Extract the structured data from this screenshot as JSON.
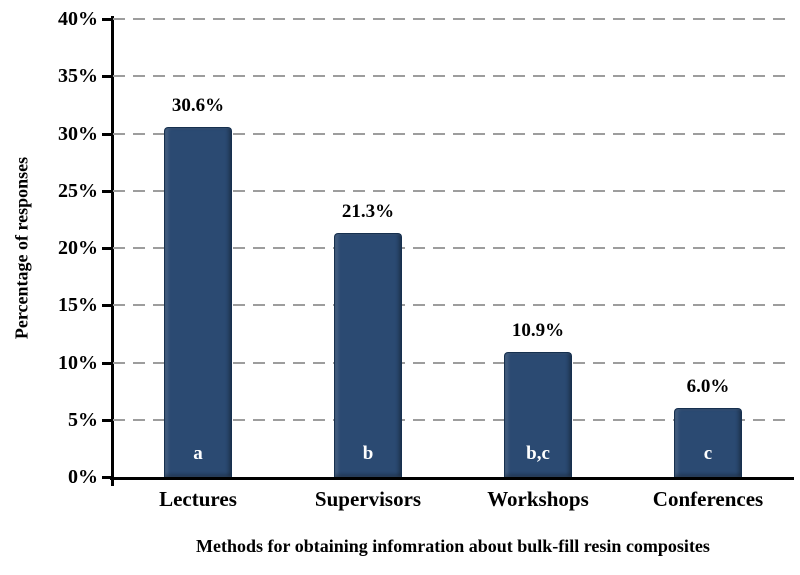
{
  "chart_data": {
    "type": "bar",
    "title": "",
    "categories": [
      "Lectures",
      "Supervisors",
      "Workshops",
      "Conferences"
    ],
    "values": [
      30.6,
      21.3,
      10.9,
      6.0
    ],
    "value_labels": [
      "30.6%",
      "21.3%",
      "10.9%",
      "6.0%"
    ],
    "bar_annotations": [
      "a",
      "b",
      "b,c",
      "c"
    ],
    "xlabel": "Methods for obtaining infomration about bulk-fill resin composites",
    "ylabel": "Percentage of responses",
    "ylim": [
      0,
      40
    ],
    "ytick_step": 5,
    "ytick_labels": [
      "0%",
      "5%",
      "10%",
      "15%",
      "20%",
      "25%",
      "30%",
      "35%",
      "40%"
    ],
    "grid": "horizontal-dashed",
    "legend_position": "none",
    "colors": {
      "bar_fill": "#2b4a72",
      "bar_edge": "#16304f",
      "bar_highlight": "#7390b4",
      "gridline": "#9d9d9d",
      "axis": "#000000",
      "text": "#000000",
      "annotation_text": "#ffffff",
      "background": "#ffffff"
    }
  }
}
